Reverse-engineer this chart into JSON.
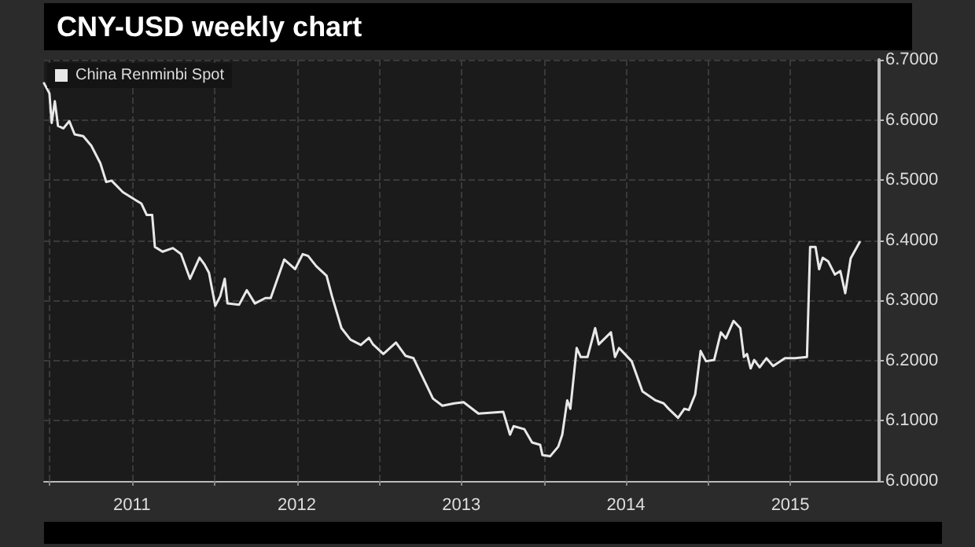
{
  "chart_data": {
    "type": "line",
    "title": "CNY-USD weekly chart",
    "x": [
      "2010-12-19",
      "2010-12-31",
      "2011-01-05",
      "2011-01-12",
      "2011-01-19",
      "2011-01-31",
      "2011-02-13",
      "2011-02-25",
      "2011-03-16",
      "2011-04-03",
      "2011-04-23",
      "2011-05-06",
      "2011-05-18",
      "2011-06-12",
      "2011-07-12",
      "2011-07-23",
      "2011-08-04",
      "2011-08-16",
      "2011-08-22",
      "2011-09-08",
      "2011-10-01",
      "2011-10-19",
      "2011-11-08",
      "2011-11-29",
      "2011-12-10",
      "2011-12-20",
      "2012-01-03",
      "2012-01-14",
      "2012-01-24",
      "2012-01-30",
      "2012-02-25",
      "2012-03-13",
      "2012-03-31",
      "2012-04-23",
      "2012-05-05",
      "2012-06-04",
      "2012-06-28",
      "2012-07-15",
      "2012-07-27",
      "2012-08-14",
      "2012-09-06",
      "2012-09-18",
      "2012-10-09",
      "2012-10-29",
      "2012-11-21",
      "2012-12-09",
      "2012-12-18",
      "2013-01-10",
      "2013-02-07",
      "2013-02-28",
      "2013-03-18",
      "2013-04-30",
      "2013-05-21",
      "2013-06-16",
      "2013-07-07",
      "2013-08-09",
      "2013-10-03",
      "2013-10-18",
      "2013-10-26",
      "2013-11-19",
      "2013-12-06",
      "2013-12-24",
      "2013-12-29",
      "2014-01-15",
      "2014-02-02",
      "2014-02-11",
      "2014-02-22",
      "2014-03-01",
      "2014-03-15",
      "2014-03-24",
      "2014-04-08",
      "2014-04-25",
      "2014-05-03",
      "2014-05-30",
      "2014-06-08",
      "2014-06-17",
      "2014-07-15",
      "2014-08-08",
      "2014-09-06",
      "2014-09-24",
      "2014-10-05",
      "2014-10-26",
      "2014-11-09",
      "2014-11-19",
      "2014-12-03",
      "2014-12-15",
      "2014-12-27",
      "2015-01-14",
      "2015-01-29",
      "2015-02-09",
      "2015-02-26",
      "2015-03-13",
      "2015-03-21",
      "2015-03-28",
      "2015-04-05",
      "2015-04-13",
      "2015-04-25",
      "2015-05-10",
      "2015-05-25",
      "2015-06-20",
      "2015-07-13",
      "2015-08-08",
      "2015-08-15",
      "2015-08-27",
      "2015-09-04",
      "2015-09-12",
      "2015-09-24",
      "2015-10-09",
      "2015-10-21",
      "2015-11-01",
      "2015-11-13",
      "2015-12-03"
    ],
    "series": [
      {
        "name": "China Renminbi Spot",
        "color": "#e8e8e8",
        "values": [
          6.661,
          6.644,
          6.595,
          6.631,
          6.59,
          6.586,
          6.598,
          6.576,
          6.573,
          6.557,
          6.528,
          6.497,
          6.499,
          6.48,
          6.466,
          6.461,
          6.442,
          6.442,
          6.389,
          6.381,
          6.387,
          6.377,
          6.336,
          6.371,
          6.36,
          6.346,
          6.291,
          6.307,
          6.336,
          6.295,
          6.293,
          6.317,
          6.295,
          6.304,
          6.304,
          6.368,
          6.352,
          6.377,
          6.374,
          6.357,
          6.341,
          6.307,
          6.254,
          6.235,
          6.226,
          6.238,
          6.227,
          6.211,
          6.23,
          6.208,
          6.204,
          6.137,
          6.125,
          6.129,
          6.131,
          6.112,
          6.115,
          6.077,
          6.091,
          6.086,
          6.064,
          6.06,
          6.043,
          6.041,
          6.057,
          6.077,
          6.134,
          6.12,
          6.221,
          6.206,
          6.206,
          6.254,
          6.227,
          6.247,
          6.206,
          6.221,
          6.199,
          6.149,
          6.134,
          6.129,
          6.12,
          6.105,
          6.12,
          6.118,
          6.144,
          6.216,
          6.199,
          6.201,
          6.247,
          6.237,
          6.266,
          6.254,
          6.206,
          6.211,
          6.187,
          6.201,
          6.189,
          6.204,
          6.191,
          6.204,
          6.204,
          6.206,
          6.389,
          6.389,
          6.352,
          6.371,
          6.365,
          6.343,
          6.349,
          6.312,
          6.37,
          6.397
        ]
      }
    ],
    "xlim": [
      "2010-12-19",
      "2016-01-15"
    ],
    "xticks": [
      {
        "value": "2011-01-01",
        "label": null
      },
      {
        "value": "2011-07-02",
        "label": "2011"
      },
      {
        "value": "2012-01-01",
        "label": null
      },
      {
        "value": "2012-07-02",
        "label": "2012"
      },
      {
        "value": "2013-01-01",
        "label": null
      },
      {
        "value": "2013-07-02",
        "label": "2013"
      },
      {
        "value": "2014-01-01",
        "label": null
      },
      {
        "value": "2014-07-02",
        "label": "2014"
      },
      {
        "value": "2015-01-01",
        "label": null
      },
      {
        "value": "2015-07-02",
        "label": "2015"
      }
    ],
    "ylim": [
      6.0,
      6.7
    ],
    "yticks": [
      {
        "value": 6.0,
        "label": "6.0000"
      },
      {
        "value": 6.1,
        "label": "6.1000"
      },
      {
        "value": 6.2,
        "label": "6.2000"
      },
      {
        "value": 6.3,
        "label": "6.3000"
      },
      {
        "value": 6.4,
        "label": "6.4000"
      },
      {
        "value": 6.5,
        "label": "6.5000"
      },
      {
        "value": 6.6,
        "label": "6.6000"
      },
      {
        "value": 6.7,
        "label": "6.7000"
      }
    ],
    "grid": true,
    "legend": "top left",
    "marker": "none",
    "line_style": "solid"
  }
}
